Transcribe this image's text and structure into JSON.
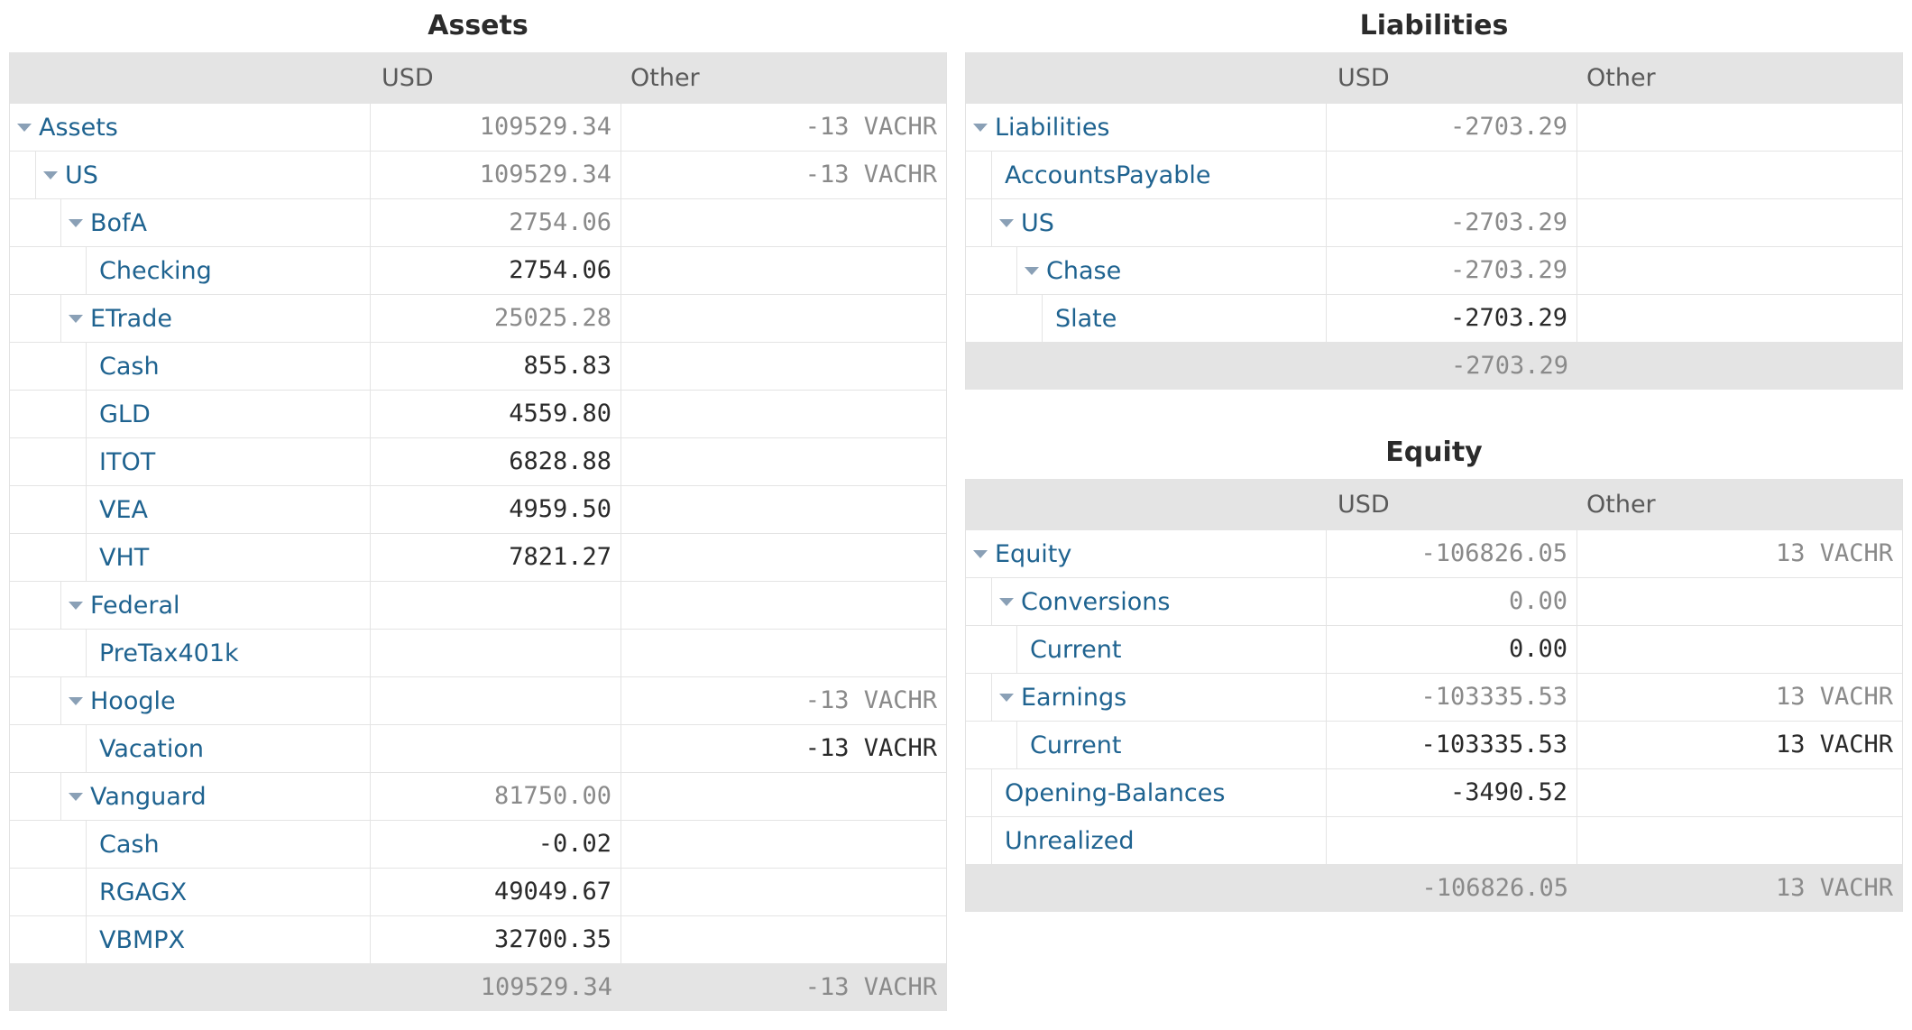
{
  "assets": {
    "title": "Assets",
    "col_usd": "USD",
    "col_other": "Other",
    "rows": [
      {
        "name": "Assets",
        "usd": "109529.34",
        "other": "-13 VACHR",
        "depth": 0,
        "toggle": true,
        "style": "muted"
      },
      {
        "name": "US",
        "usd": "109529.34",
        "other": "-13 VACHR",
        "depth": 1,
        "toggle": true,
        "style": "muted"
      },
      {
        "name": "BofA",
        "usd": "2754.06",
        "other": "",
        "depth": 2,
        "toggle": true,
        "style": "muted"
      },
      {
        "name": "Checking",
        "usd": "2754.06",
        "other": "",
        "depth": 3,
        "toggle": false,
        "style": "dark"
      },
      {
        "name": "ETrade",
        "usd": "25025.28",
        "other": "",
        "depth": 2,
        "toggle": true,
        "style": "muted"
      },
      {
        "name": "Cash",
        "usd": "855.83",
        "other": "",
        "depth": 3,
        "toggle": false,
        "style": "dark"
      },
      {
        "name": "GLD",
        "usd": "4559.80",
        "other": "",
        "depth": 3,
        "toggle": false,
        "style": "dark"
      },
      {
        "name": "ITOT",
        "usd": "6828.88",
        "other": "",
        "depth": 3,
        "toggle": false,
        "style": "dark"
      },
      {
        "name": "VEA",
        "usd": "4959.50",
        "other": "",
        "depth": 3,
        "toggle": false,
        "style": "dark"
      },
      {
        "name": "VHT",
        "usd": "7821.27",
        "other": "",
        "depth": 3,
        "toggle": false,
        "style": "dark"
      },
      {
        "name": "Federal",
        "usd": "",
        "other": "",
        "depth": 2,
        "toggle": true,
        "style": "muted"
      },
      {
        "name": "PreTax401k",
        "usd": "",
        "other": "",
        "depth": 3,
        "toggle": false,
        "style": "dark"
      },
      {
        "name": "Hoogle",
        "usd": "",
        "other": "-13 VACHR",
        "depth": 2,
        "toggle": true,
        "style": "muted"
      },
      {
        "name": "Vacation",
        "usd": "",
        "other": "-13 VACHR",
        "depth": 3,
        "toggle": false,
        "style": "dark"
      },
      {
        "name": "Vanguard",
        "usd": "81750.00",
        "other": "",
        "depth": 2,
        "toggle": true,
        "style": "muted"
      },
      {
        "name": "Cash",
        "usd": "-0.02",
        "other": "",
        "depth": 3,
        "toggle": false,
        "style": "dark"
      },
      {
        "name": "RGAGX",
        "usd": "49049.67",
        "other": "",
        "depth": 3,
        "toggle": false,
        "style": "dark"
      },
      {
        "name": "VBMPX",
        "usd": "32700.35",
        "other": "",
        "depth": 3,
        "toggle": false,
        "style": "dark"
      }
    ],
    "total": {
      "usd": "109529.34",
      "other": "-13 VACHR"
    }
  },
  "liabilities": {
    "title": "Liabilities",
    "col_usd": "USD",
    "col_other": "Other",
    "rows": [
      {
        "name": "Liabilities",
        "usd": "-2703.29",
        "other": "",
        "depth": 0,
        "toggle": true,
        "style": "muted"
      },
      {
        "name": "AccountsPayable",
        "usd": "",
        "other": "",
        "depth": 1,
        "toggle": false,
        "style": "dark"
      },
      {
        "name": "US",
        "usd": "-2703.29",
        "other": "",
        "depth": 1,
        "toggle": true,
        "style": "muted"
      },
      {
        "name": "Chase",
        "usd": "-2703.29",
        "other": "",
        "depth": 2,
        "toggle": true,
        "style": "muted"
      },
      {
        "name": "Slate",
        "usd": "-2703.29",
        "other": "",
        "depth": 3,
        "toggle": false,
        "style": "dark"
      }
    ],
    "total": {
      "usd": "-2703.29",
      "other": ""
    }
  },
  "equity": {
    "title": "Equity",
    "col_usd": "USD",
    "col_other": "Other",
    "rows": [
      {
        "name": "Equity",
        "usd": "-106826.05",
        "other": "13 VACHR",
        "depth": 0,
        "toggle": true,
        "style": "muted"
      },
      {
        "name": "Conversions",
        "usd": "0.00",
        "other": "",
        "depth": 1,
        "toggle": true,
        "style": "muted"
      },
      {
        "name": "Current",
        "usd": "0.00",
        "other": "",
        "depth": 2,
        "toggle": false,
        "style": "dark"
      },
      {
        "name": "Earnings",
        "usd": "-103335.53",
        "other": "13 VACHR",
        "depth": 1,
        "toggle": true,
        "style": "muted"
      },
      {
        "name": "Current",
        "usd": "-103335.53",
        "other": "13 VACHR",
        "depth": 2,
        "toggle": false,
        "style": "dark"
      },
      {
        "name": "Opening-Balances",
        "usd": "-3490.52",
        "other": "",
        "depth": 1,
        "toggle": false,
        "style": "dark"
      },
      {
        "name": "Unrealized",
        "usd": "",
        "other": "",
        "depth": 1,
        "toggle": false,
        "style": "dark"
      }
    ],
    "total": {
      "usd": "-106826.05",
      "other": "13 VACHR"
    }
  }
}
